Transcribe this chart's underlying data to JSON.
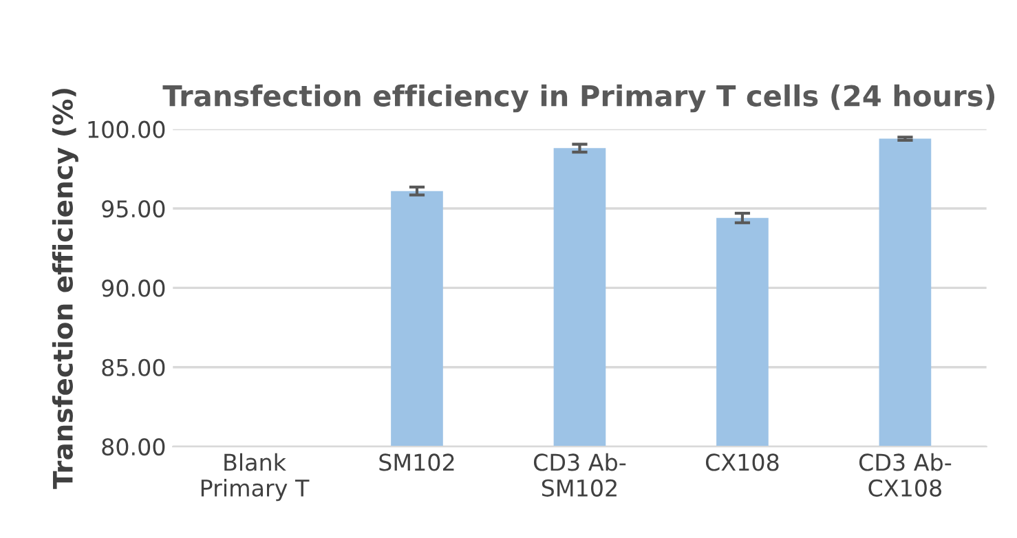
{
  "chart_data": {
    "type": "bar",
    "title": "Transfection efficiency in Primary T cells (24 hours)",
    "ylabel": "Transfection efficiency (%)",
    "categories": [
      "Blank\nPrimary T",
      "SM102",
      "CD3 Ab-\nSM102",
      "CX108",
      "CD3 Ab-\nCX108"
    ],
    "values": [
      null,
      96.1,
      98.8,
      94.4,
      99.4
    ],
    "errors": [
      null,
      0.25,
      0.25,
      0.3,
      0.1
    ],
    "color": "#9dc3e6",
    "ylim": [
      80,
      100
    ],
    "yticks": [
      {
        "value": 80,
        "label": "80.00"
      },
      {
        "value": 85,
        "label": "85.00"
      },
      {
        "value": 90,
        "label": "90.00"
      },
      {
        "value": 95,
        "label": "95.00"
      },
      {
        "value": 100,
        "label": "100.00"
      }
    ],
    "grid": "y"
  }
}
